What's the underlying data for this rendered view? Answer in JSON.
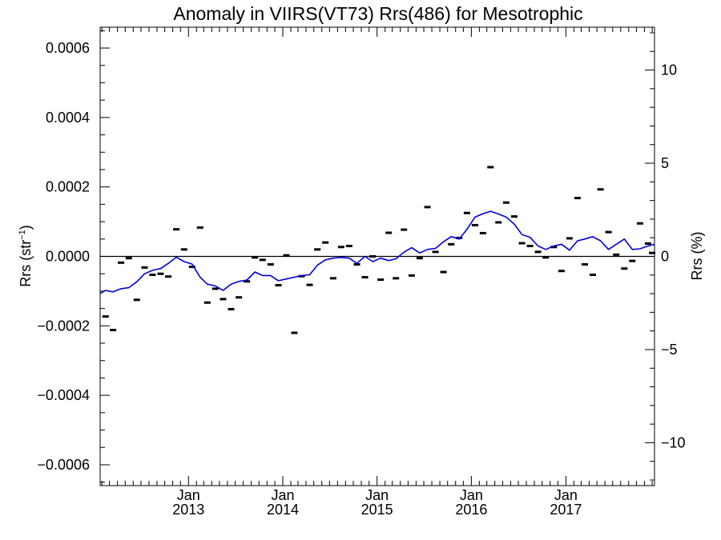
{
  "chart_data": {
    "type": "scatter",
    "title": "Anomaly in VIIRS(VT73) Rrs(486) for Mesotrophic",
    "ylabel_left": "Rrs (str",
    "ylabel_left_sup": "−1",
    "ylabel_left_close": ")",
    "ylabel_right": "Rrs (%)",
    "x_range": [
      "2012-01-25",
      "2017-12-10"
    ],
    "y_left_range": [
      -0.00066,
      0.00066
    ],
    "y_right_range": [
      -12.3,
      12.3
    ],
    "y_left_ticks": [
      {
        "value": 0.0006,
        "label": "0.0006"
      },
      {
        "value": 0.0004,
        "label": "0.0004"
      },
      {
        "value": 0.0002,
        "label": "0.0002"
      },
      {
        "value": 0.0,
        "label": "0.0000"
      },
      {
        "value": -0.0002,
        "label": "−0.0002"
      },
      {
        "value": -0.0004,
        "label": "−0.0004"
      },
      {
        "value": -0.0006,
        "label": "−0.0006"
      }
    ],
    "y_right_ticks": [
      {
        "value": 10,
        "label": "10"
      },
      {
        "value": 5,
        "label": "5"
      },
      {
        "value": 0,
        "label": "0"
      },
      {
        "value": -5,
        "label": "−5"
      },
      {
        "value": -10,
        "label": "−10"
      }
    ],
    "x_ticks": [
      {
        "date": "2013-01-01",
        "month": "Jan",
        "year": "2013"
      },
      {
        "date": "2014-01-01",
        "month": "Jan",
        "year": "2014"
      },
      {
        "date": "2015-01-01",
        "month": "Jan",
        "year": "2015"
      },
      {
        "date": "2016-01-01",
        "month": "Jan",
        "year": "2016"
      },
      {
        "date": "2017-01-01",
        "month": "Jan",
        "year": "2017"
      }
    ],
    "zero_line": 0,
    "series": [
      {
        "kind": "points",
        "color": "#000000",
        "x": [
          "2012-01-20",
          "2012-02-15",
          "2012-03-15",
          "2012-04-15",
          "2012-05-15",
          "2012-06-15",
          "2012-07-15",
          "2012-08-15",
          "2012-09-15",
          "2012-10-15",
          "2012-11-15",
          "2012-12-15",
          "2013-01-15",
          "2013-02-15",
          "2013-03-15",
          "2013-04-15",
          "2013-05-15",
          "2013-06-15",
          "2013-07-15",
          "2013-08-15",
          "2013-09-15",
          "2013-10-15",
          "2013-11-15",
          "2013-12-15",
          "2014-01-15",
          "2014-02-15",
          "2014-03-15",
          "2014-04-15",
          "2014-05-15",
          "2014-06-15",
          "2014-07-15",
          "2014-08-15",
          "2014-09-15",
          "2014-10-15",
          "2014-11-15",
          "2014-12-15",
          "2015-01-15",
          "2015-02-15",
          "2015-03-15",
          "2015-04-15",
          "2015-05-15",
          "2015-06-15",
          "2015-07-15",
          "2015-08-15",
          "2015-09-15",
          "2015-10-15",
          "2015-11-15",
          "2015-12-15",
          "2016-01-15",
          "2016-02-15",
          "2016-03-15",
          "2016-04-15",
          "2016-05-15",
          "2016-06-15",
          "2016-07-15",
          "2016-08-15",
          "2016-09-15",
          "2016-10-15",
          "2016-11-15",
          "2016-12-15",
          "2017-01-15",
          "2017-02-15",
          "2017-03-15",
          "2017-04-15",
          "2017-05-15",
          "2017-06-15",
          "2017-07-15",
          "2017-08-15",
          "2017-09-15",
          "2017-10-15",
          "2017-11-15",
          "2017-12-01"
        ],
        "values": [
          -8.2e-05,
          -0.000173,
          -0.000212,
          -1.8e-05,
          -5e-06,
          -0.000125,
          -3.2e-05,
          -5.3e-05,
          -5e-05,
          -5.8e-05,
          7.8e-05,
          2e-05,
          -3e-05,
          8.3e-05,
          -0.000133,
          -9.3e-05,
          -0.000123,
          -0.000152,
          -0.000118,
          -7.2e-05,
          -3e-06,
          -1e-05,
          -2.3e-05,
          -8.3e-05,
          3e-06,
          -0.00022,
          -5.7e-05,
          -8.2e-05,
          2e-05,
          4e-05,
          -6.3e-05,
          2.7e-05,
          3e-05,
          -2.3e-05,
          -6e-05,
          0.0,
          -6.7e-05,
          6.8e-05,
          -6.3e-05,
          7.7e-05,
          -5.5e-05,
          -5e-06,
          0.000142,
          1.3e-05,
          -4.5e-05,
          3.5e-05,
          5.3e-05,
          0.000125,
          9e-05,
          6.7e-05,
          0.000257,
          9.8e-05,
          0.000155,
          0.000115,
          3.8e-05,
          3e-05,
          1.3e-05,
          -3e-06,
          2.7e-05,
          -4.2e-05,
          5.2e-05,
          0.000168,
          -2.3e-05,
          -5.3e-05,
          0.000193,
          7e-05,
          5e-06,
          -3.5e-05,
          -1.3e-05,
          9.5e-05,
          3.7e-05,
          1e-05
        ]
      },
      {
        "kind": "line",
        "color": "#0000dd",
        "x": [
          "2012-01-25",
          "2012-02-15",
          "2012-03-15",
          "2012-04-15",
          "2012-05-15",
          "2012-06-15",
          "2012-07-15",
          "2012-08-15",
          "2012-09-15",
          "2012-10-15",
          "2012-11-15",
          "2012-12-15",
          "2013-01-15",
          "2013-02-15",
          "2013-03-15",
          "2013-04-15",
          "2013-05-15",
          "2013-06-15",
          "2013-07-15",
          "2013-08-15",
          "2013-09-15",
          "2013-10-15",
          "2013-11-15",
          "2013-12-15",
          "2014-01-15",
          "2014-02-15",
          "2014-03-15",
          "2014-04-15",
          "2014-05-15",
          "2014-06-15",
          "2014-07-15",
          "2014-08-15",
          "2014-09-15",
          "2014-10-15",
          "2014-11-15",
          "2014-12-15",
          "2015-01-15",
          "2015-02-15",
          "2015-03-15",
          "2015-04-15",
          "2015-05-15",
          "2015-06-15",
          "2015-07-15",
          "2015-08-15",
          "2015-09-15",
          "2015-10-15",
          "2015-11-15",
          "2015-12-15",
          "2016-01-15",
          "2016-02-15",
          "2016-03-15",
          "2016-04-15",
          "2016-05-15",
          "2016-06-15",
          "2016-07-15",
          "2016-08-15",
          "2016-09-15",
          "2016-10-15",
          "2016-11-15",
          "2016-12-15",
          "2017-01-15",
          "2017-02-15",
          "2017-03-15",
          "2017-04-15",
          "2017-05-15",
          "2017-06-15",
          "2017-07-15",
          "2017-08-15",
          "2017-09-15",
          "2017-10-15",
          "2017-11-15",
          "2017-12-10"
        ],
        "values": [
          -0.000107,
          -9.8e-05,
          -0.000102,
          -9.3e-05,
          -9e-05,
          -7.3e-05,
          -5e-05,
          -4e-05,
          -3.5e-05,
          -2e-05,
          -2e-06,
          -1.5e-05,
          -2.2e-05,
          -6e-05,
          -8e-05,
          -8.5e-05,
          -9.8e-05,
          -8e-05,
          -7.2e-05,
          -6.8e-05,
          -4.5e-05,
          -5.5e-05,
          -5.5e-05,
          -7e-05,
          -6.5e-05,
          -6e-05,
          -5.5e-05,
          -5.3e-05,
          -2.5e-05,
          -1e-05,
          -5e-06,
          -3e-06,
          -5e-06,
          -2e-05,
          0.0,
          -1.5e-05,
          -5e-06,
          -1.2e-05,
          -7e-06,
          1.2e-05,
          2.5e-05,
          1e-05,
          2e-05,
          2.3e-05,
          4.2e-05,
          5.7e-05,
          5e-05,
          7.8e-05,
          0.000113,
          0.000123,
          0.00013,
          0.000122,
          0.000113,
          9.3e-05,
          6.3e-05,
          5.5e-05,
          3e-05,
          2e-05,
          3e-05,
          3.5e-05,
          1.8e-05,
          4.5e-05,
          5e-05,
          5.7e-05,
          4.5e-05,
          2e-05,
          3.5e-05,
          5e-05,
          2e-05,
          2.2e-05,
          3e-05,
          3.5e-05
        ]
      }
    ]
  }
}
